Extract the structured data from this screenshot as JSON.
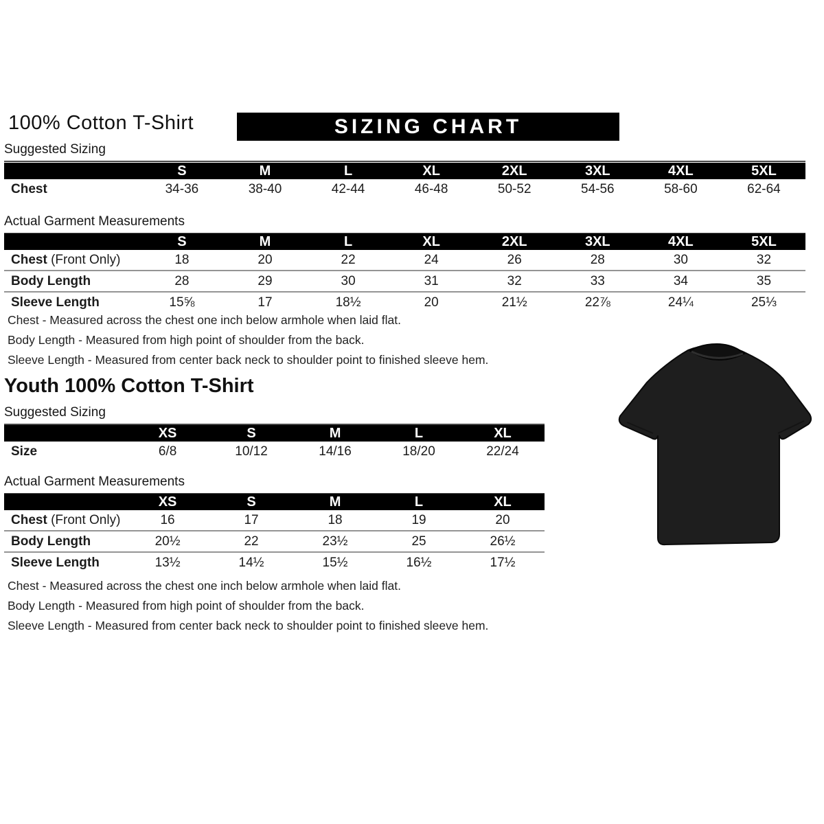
{
  "colors": {
    "bar": "#000000",
    "banner_bg": "#000000",
    "banner_text": "#ffffff",
    "text": "#1a1a1a",
    "row_separator": "#949494",
    "tshirt": "#1e1e1e"
  },
  "adult": {
    "title": "100% Cotton T-Shirt",
    "banner": "SIZING CHART",
    "suggested": {
      "label": "Suggested Sizing",
      "table": {
        "columns": [
          "",
          "S",
          "M",
          "L",
          "XL",
          "2XL",
          "3XL",
          "4XL",
          "5XL"
        ],
        "rows": [
          [
            [
              "Chest",
              ""
            ],
            "34-36",
            "38-40",
            "42-44",
            "46-48",
            "50-52",
            "54-56",
            "58-60",
            "62-64"
          ]
        ]
      }
    },
    "actual": {
      "label": "Actual Garment Measurements",
      "table": {
        "columns": [
          "",
          "S",
          "M",
          "L",
          "XL",
          "2XL",
          "3XL",
          "4XL",
          "5XL"
        ],
        "rows": [
          [
            [
              "Chest",
              " (Front Only)"
            ],
            "18",
            "20",
            "22",
            "24",
            "26",
            "28",
            "30",
            "32"
          ],
          [
            [
              "Body Length",
              ""
            ],
            "28",
            "29",
            "30",
            "31",
            "32",
            "33",
            "34",
            "35"
          ],
          [
            [
              "Sleeve Length",
              ""
            ],
            "15⅝",
            "17",
            "18½",
            "20",
            "21½",
            "22⅞",
            "24¼",
            "25⅓"
          ]
        ]
      }
    },
    "notes": [
      "Chest - Measured across the chest one inch below armhole when laid flat.",
      "Body Length - Measured from high point of shoulder from the back.",
      "Sleeve Length - Measured from center back neck to shoulder point to finished sleeve hem."
    ]
  },
  "youth": {
    "title": "Youth 100% Cotton T-Shirt",
    "suggested": {
      "label": "Suggested Sizing",
      "table": {
        "columns": [
          "",
          "XS",
          "S",
          "M",
          "L",
          "XL"
        ],
        "rows": [
          [
            [
              "Size",
              ""
            ],
            "6/8",
            "10/12",
            "14/16",
            "18/20",
            "22/24"
          ]
        ]
      }
    },
    "actual": {
      "label": "Actual Garment Measurements",
      "table": {
        "columns": [
          "",
          "XS",
          "S",
          "M",
          "L",
          "XL"
        ],
        "rows": [
          [
            [
              "Chest",
              " (Front Only)"
            ],
            "16",
            "17",
            "18",
            "19",
            "20"
          ],
          [
            [
              "Body Length",
              ""
            ],
            "20½",
            "22",
            "23½",
            "25",
            "26½"
          ],
          [
            [
              "Sleeve Length",
              ""
            ],
            "13½",
            "14½",
            "15½",
            "16½",
            "17½"
          ]
        ]
      }
    },
    "notes": [
      "Chest - Measured across the chest one inch below armhole when laid flat.",
      "Body Length - Measured from high point of shoulder from the back.",
      "Sleeve Length - Measured from center back neck to shoulder point to finished sleeve hem."
    ]
  },
  "tshirt": {
    "description": "black short-sleeve t-shirt product photo"
  }
}
